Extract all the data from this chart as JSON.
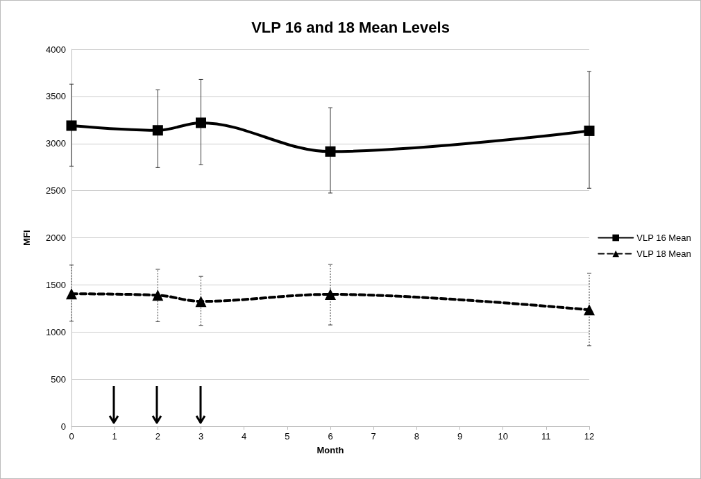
{
  "chart_data": {
    "type": "line",
    "title": "VLP 16 and 18 Mean Levels",
    "xlabel": "Month",
    "ylabel": "MFI",
    "x": [
      0,
      2,
      3,
      6,
      12
    ],
    "series": [
      {
        "name": "VLP 16 Mean",
        "color": "#000000",
        "marker": "square",
        "line_style": "solid",
        "values": [
          3190,
          3140,
          3220,
          2915,
          3135
        ],
        "errors": [
          [
            2760,
            3630
          ],
          [
            2745,
            3570
          ],
          [
            2775,
            3680
          ],
          [
            2475,
            3380
          ],
          [
            2525,
            3765
          ]
        ]
      },
      {
        "name": "VLP 18 Mean",
        "color": "#000000",
        "marker": "triangle",
        "line_style": "dashed",
        "values": [
          1405,
          1390,
          1325,
          1400,
          1235
        ],
        "errors": [
          [
            1115,
            1710
          ],
          [
            1110,
            1665
          ],
          [
            1070,
            1590
          ],
          [
            1075,
            1720
          ],
          [
            855,
            1625
          ]
        ]
      }
    ],
    "xlim": [
      0,
      12
    ],
    "xticks": [
      0,
      1,
      2,
      3,
      4,
      5,
      6,
      7,
      8,
      9,
      10,
      11,
      12
    ],
    "ylim": [
      0,
      4000
    ],
    "yticks": [
      0,
      500,
      1000,
      1500,
      2000,
      2500,
      3000,
      3500,
      4000
    ],
    "grid": "y",
    "legend": "right"
  }
}
